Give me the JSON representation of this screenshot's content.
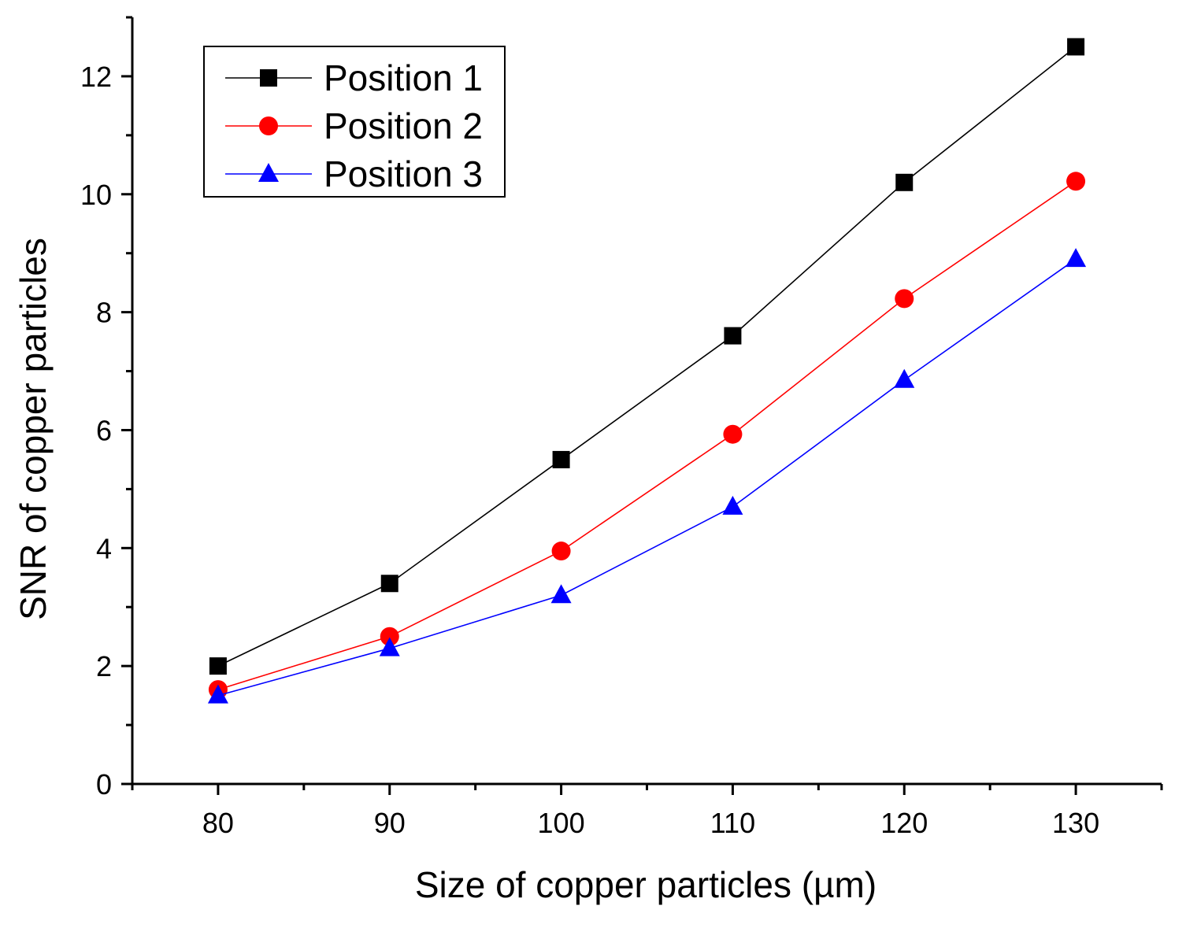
{
  "chart_data": {
    "type": "line",
    "title": "",
    "xlabel": "Size of copper particles  (µm)",
    "ylabel": "SNR of copper particles",
    "x": [
      80,
      90,
      100,
      110,
      120,
      130
    ],
    "xlim": [
      75,
      135
    ],
    "ylim": [
      0,
      13
    ],
    "xticks": [
      80,
      90,
      100,
      110,
      120,
      130
    ],
    "xtick_labels": [
      "80",
      "90",
      "100",
      "110",
      "120",
      "130"
    ],
    "yticks": [
      0,
      2,
      4,
      6,
      8,
      10,
      12
    ],
    "ytick_labels": [
      "0",
      "2",
      "4",
      "6",
      "8",
      "10",
      "12"
    ],
    "grid": false,
    "legend_position": "top-left",
    "series": [
      {
        "name": "Position 1",
        "marker": "square",
        "color": "#000000",
        "values": [
          2.0,
          3.4,
          5.5,
          7.6,
          10.2,
          12.5
        ]
      },
      {
        "name": "Position 2",
        "marker": "circle",
        "color": "#ff0000",
        "values": [
          1.6,
          2.5,
          3.95,
          5.93,
          8.23,
          10.22
        ]
      },
      {
        "name": "Position 3",
        "marker": "triangle",
        "color": "#0000ff",
        "values": [
          1.5,
          2.3,
          3.2,
          4.7,
          6.85,
          8.9
        ]
      }
    ]
  }
}
